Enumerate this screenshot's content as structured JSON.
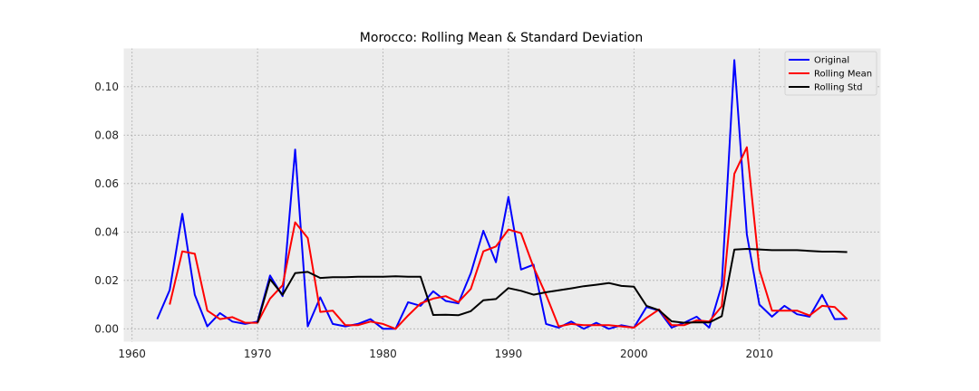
{
  "chart_data": {
    "type": "line",
    "title": "Morocco: Rolling Mean & Standard Deviation",
    "xlabel": "",
    "ylabel": "",
    "xlim": [
      1959.3,
      2019.7
    ],
    "ylim": [
      -0.0055,
      0.116
    ],
    "x_ticks": [
      1960,
      1970,
      1980,
      1990,
      2000,
      2010
    ],
    "y_ticks": [
      0.0,
      0.02,
      0.04,
      0.06,
      0.08,
      0.1
    ],
    "y_tick_labels": [
      "0.00",
      "0.02",
      "0.04",
      "0.06",
      "0.08",
      "0.10"
    ],
    "grid": true,
    "legend_position": "top-right",
    "background": "#ececec",
    "series": [
      {
        "name": "Original",
        "color": "#0000ff",
        "x": [
          1962,
          1963,
          1964,
          1965,
          1966,
          1967,
          1968,
          1969,
          1970,
          1971,
          1972,
          1973,
          1974,
          1975,
          1976,
          1977,
          1978,
          1979,
          1980,
          1981,
          1982,
          1983,
          1984,
          1985,
          1986,
          1987,
          1988,
          1989,
          1990,
          1991,
          1992,
          1993,
          1994,
          1995,
          1996,
          1997,
          1998,
          1999,
          2000,
          2001,
          2002,
          2003,
          2004,
          2005,
          2006,
          2007,
          2008,
          2009,
          2010,
          2011,
          2012,
          2013,
          2014,
          2015,
          2016,
          2017
        ],
        "values": [
          0.004,
          0.016,
          0.0475,
          0.014,
          0.001,
          0.0065,
          0.003,
          0.002,
          0.003,
          0.022,
          0.0135,
          0.074,
          0.001,
          0.013,
          0.002,
          0.001,
          0.002,
          0.004,
          0.0,
          0.0,
          0.011,
          0.0095,
          0.0155,
          0.0115,
          0.0105,
          0.023,
          0.0405,
          0.0275,
          0.0545,
          0.0245,
          0.0265,
          0.002,
          0.0005,
          0.003,
          0.0,
          0.0025,
          0.0,
          0.0015,
          0.0005,
          0.009,
          0.0075,
          0.0005,
          0.0025,
          0.005,
          0.0005,
          0.018,
          0.111,
          0.039,
          0.01,
          0.005,
          0.0095,
          0.006,
          0.005,
          0.014,
          0.004,
          0.0042
        ]
      },
      {
        "name": "Rolling Mean",
        "color": "#ff0000",
        "x": [
          1963,
          1964,
          1965,
          1966,
          1967,
          1968,
          1969,
          1970,
          1971,
          1972,
          1973,
          1974,
          1975,
          1976,
          1977,
          1978,
          1979,
          1980,
          1981,
          1982,
          1983,
          1984,
          1985,
          1986,
          1987,
          1988,
          1989,
          1990,
          1991,
          1992,
          1993,
          1994,
          1995,
          1996,
          1997,
          1998,
          1999,
          2000,
          2001,
          2002,
          2003,
          2004,
          2005,
          2006,
          2007,
          2008,
          2009,
          2010,
          2011,
          2012,
          2013,
          2014,
          2015,
          2016,
          2017
        ],
        "values": [
          0.01,
          0.032,
          0.031,
          0.0075,
          0.004,
          0.0048,
          0.0025,
          0.0025,
          0.0125,
          0.018,
          0.044,
          0.0375,
          0.007,
          0.0075,
          0.0015,
          0.0015,
          0.003,
          0.002,
          0.0,
          0.0055,
          0.0105,
          0.0125,
          0.0135,
          0.011,
          0.0165,
          0.032,
          0.034,
          0.041,
          0.0395,
          0.0255,
          0.014,
          0.001,
          0.002,
          0.0015,
          0.0015,
          0.0015,
          0.001,
          0.0005,
          0.0045,
          0.008,
          0.0015,
          0.0015,
          0.0035,
          0.003,
          0.0093,
          0.064,
          0.075,
          0.0245,
          0.0075,
          0.0075,
          0.0075,
          0.0055,
          0.0095,
          0.009,
          0.004
        ]
      },
      {
        "name": "Rolling Std",
        "color": "#000000",
        "x": [
          1970,
          1971,
          1972,
          1973,
          1974,
          1975,
          1976,
          1977,
          1978,
          1979,
          1980,
          1981,
          1982,
          1983,
          1984,
          1985,
          1986,
          1987,
          1988,
          1989,
          1990,
          1991,
          1992,
          1993,
          1994,
          1995,
          1996,
          1997,
          1998,
          1999,
          2000,
          2001,
          2002,
          2003,
          2004,
          2005,
          2006,
          2007,
          2008,
          2009,
          2010,
          2011,
          2012,
          2013,
          2014,
          2015,
          2016,
          2017
        ],
        "values": [
          0.0025,
          0.0205,
          0.014,
          0.023,
          0.0235,
          0.021,
          0.0213,
          0.0213,
          0.0215,
          0.0215,
          0.0215,
          0.0217,
          0.0215,
          0.0215,
          0.0057,
          0.0058,
          0.0056,
          0.0073,
          0.0118,
          0.0123,
          0.0168,
          0.0157,
          0.0141,
          0.0151,
          0.0159,
          0.0167,
          0.0176,
          0.0182,
          0.0189,
          0.0177,
          0.0174,
          0.0095,
          0.0077,
          0.0031,
          0.0025,
          0.0027,
          0.0026,
          0.0052,
          0.0327,
          0.033,
          0.0328,
          0.0325,
          0.0325,
          0.0325,
          0.0322,
          0.0319,
          0.0319,
          0.0317
        ]
      }
    ]
  }
}
